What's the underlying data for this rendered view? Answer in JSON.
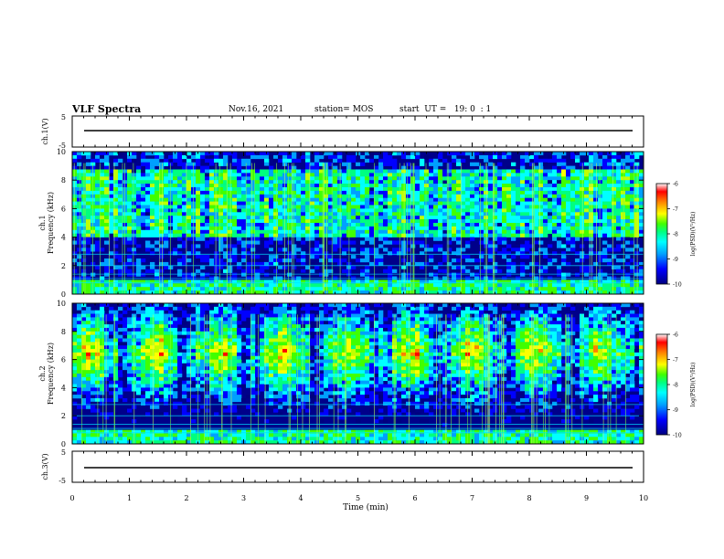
{
  "header": {
    "title": "VLF Spectra",
    "date": "Nov.16, 2021",
    "station": "station= MOS",
    "start": "start  UT =   19: 0  : 1"
  },
  "chart_data": [
    {
      "type": "line",
      "name": "waveform-ch1",
      "ylabel": "ch.1(V)",
      "ylim": [
        -5,
        5
      ],
      "yticks": [
        "5",
        "-5"
      ],
      "xlim": [
        0,
        10
      ],
      "values": [
        0,
        0
      ]
    },
    {
      "type": "heatmap",
      "name": "spectrogram-ch1",
      "ylabel": "ch.1\nFrequency (kHz)",
      "ylabel_ch": "ch.1",
      "ylabel_freq": "Frequency (kHz)",
      "ylim": [
        0,
        10
      ],
      "yticks": [
        "0",
        "2",
        "4",
        "6",
        "8",
        "10"
      ],
      "xlim": [
        0,
        10
      ],
      "colorbar": {
        "label": "log(PSD)(V²/Hz)",
        "ticks": [
          "-6",
          "-7",
          "-8",
          "-9",
          "-10"
        ],
        "range": [
          -10,
          -6
        ]
      }
    },
    {
      "type": "heatmap",
      "name": "spectrogram-ch2",
      "ylabel_ch": "ch.2",
      "ylabel_freq": "Frequency (kHz)",
      "ylim": [
        0,
        10
      ],
      "yticks": [
        "0",
        "2",
        "4",
        "6",
        "8",
        "10"
      ],
      "xlim": [
        0,
        10
      ],
      "colorbar": {
        "label": "log(PSD)(V²/Hz)",
        "ticks": [
          "-6",
          "-7",
          "-8",
          "-9",
          "-10"
        ],
        "range": [
          -10,
          -6
        ]
      }
    },
    {
      "type": "line",
      "name": "waveform-ch3",
      "ylabel": "ch.3(V)",
      "ylim": [
        -5,
        5
      ],
      "yticks": [
        "5",
        "-5"
      ],
      "xlim": [
        0,
        10
      ],
      "values": [
        0,
        0
      ]
    }
  ],
  "xaxis": {
    "label": "Time  (min)",
    "ticks": [
      "0",
      "1",
      "2",
      "3",
      "4",
      "5",
      "6",
      "7",
      "8",
      "9",
      "10"
    ]
  },
  "colors": {
    "colormap": [
      "#000080",
      "#0000ff",
      "#00a0ff",
      "#00ffff",
      "#00ff80",
      "#40ff00",
      "#c0ff00",
      "#ffff00",
      "#ff8000",
      "#ff0000"
    ]
  }
}
